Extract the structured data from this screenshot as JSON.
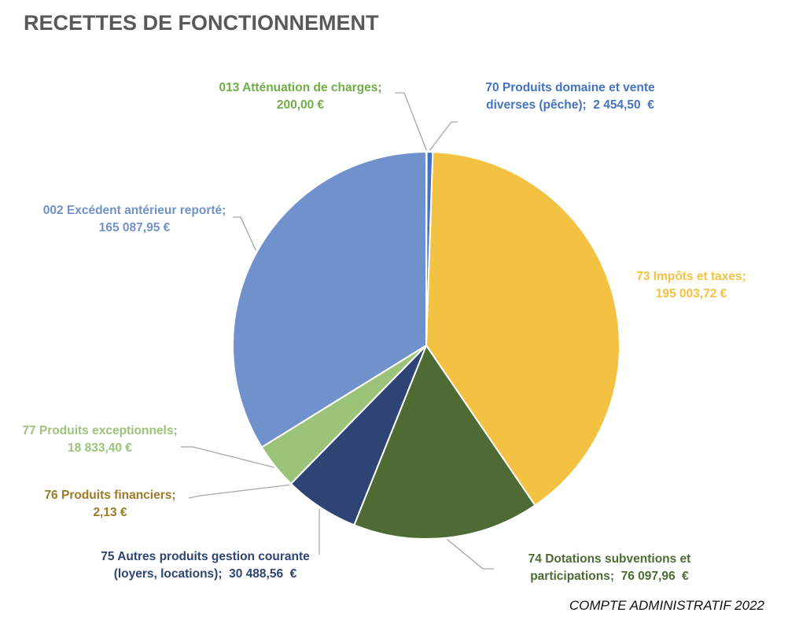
{
  "title": "RECETTES DE FONCTIONNEMENT",
  "footer": "COMPTE ADMINISTRATIF 2022",
  "chart_data": {
    "type": "pie",
    "title": "RECETTES DE FONCTIONNEMENT",
    "legend": "none",
    "slices": [
      {
        "label": "013 Atténuation de charges;",
        "value_text": "200,00  €",
        "value": 200.0,
        "color": "#70ad47"
      },
      {
        "label": "70 Produits domaine et vente diverses (pêche);",
        "value_text": "2 454,50  €",
        "value": 2454.5,
        "color": "#4472c4"
      },
      {
        "label": "73 Impôts et taxes;",
        "value_text": "195 003,72  €",
        "value": 195003.72,
        "color": "#f4c242"
      },
      {
        "label": "74 Dotations subventions et participations;",
        "value_text": "76 097,96  €",
        "value": 76097.96,
        "color": "#4e6b34"
      },
      {
        "label": "75 Autres produits gestion courante (loyers, locations);",
        "value_text": "30 488,56  €",
        "value": 30488.56,
        "color": "#2d4474"
      },
      {
        "label": "76 Produits financiers;",
        "value_text": "2,13  €",
        "value": 2.13,
        "color": "#9e7a26"
      },
      {
        "label": "77 Produits exceptionnels;",
        "value_text": "18 833,40  €",
        "value": 18833.4,
        "color": "#9bc47a"
      },
      {
        "label": "002 Excédent antérieur reporté;",
        "value_text": "165 087,95  €",
        "value": 165087.95,
        "color": "#7191cc"
      }
    ]
  }
}
